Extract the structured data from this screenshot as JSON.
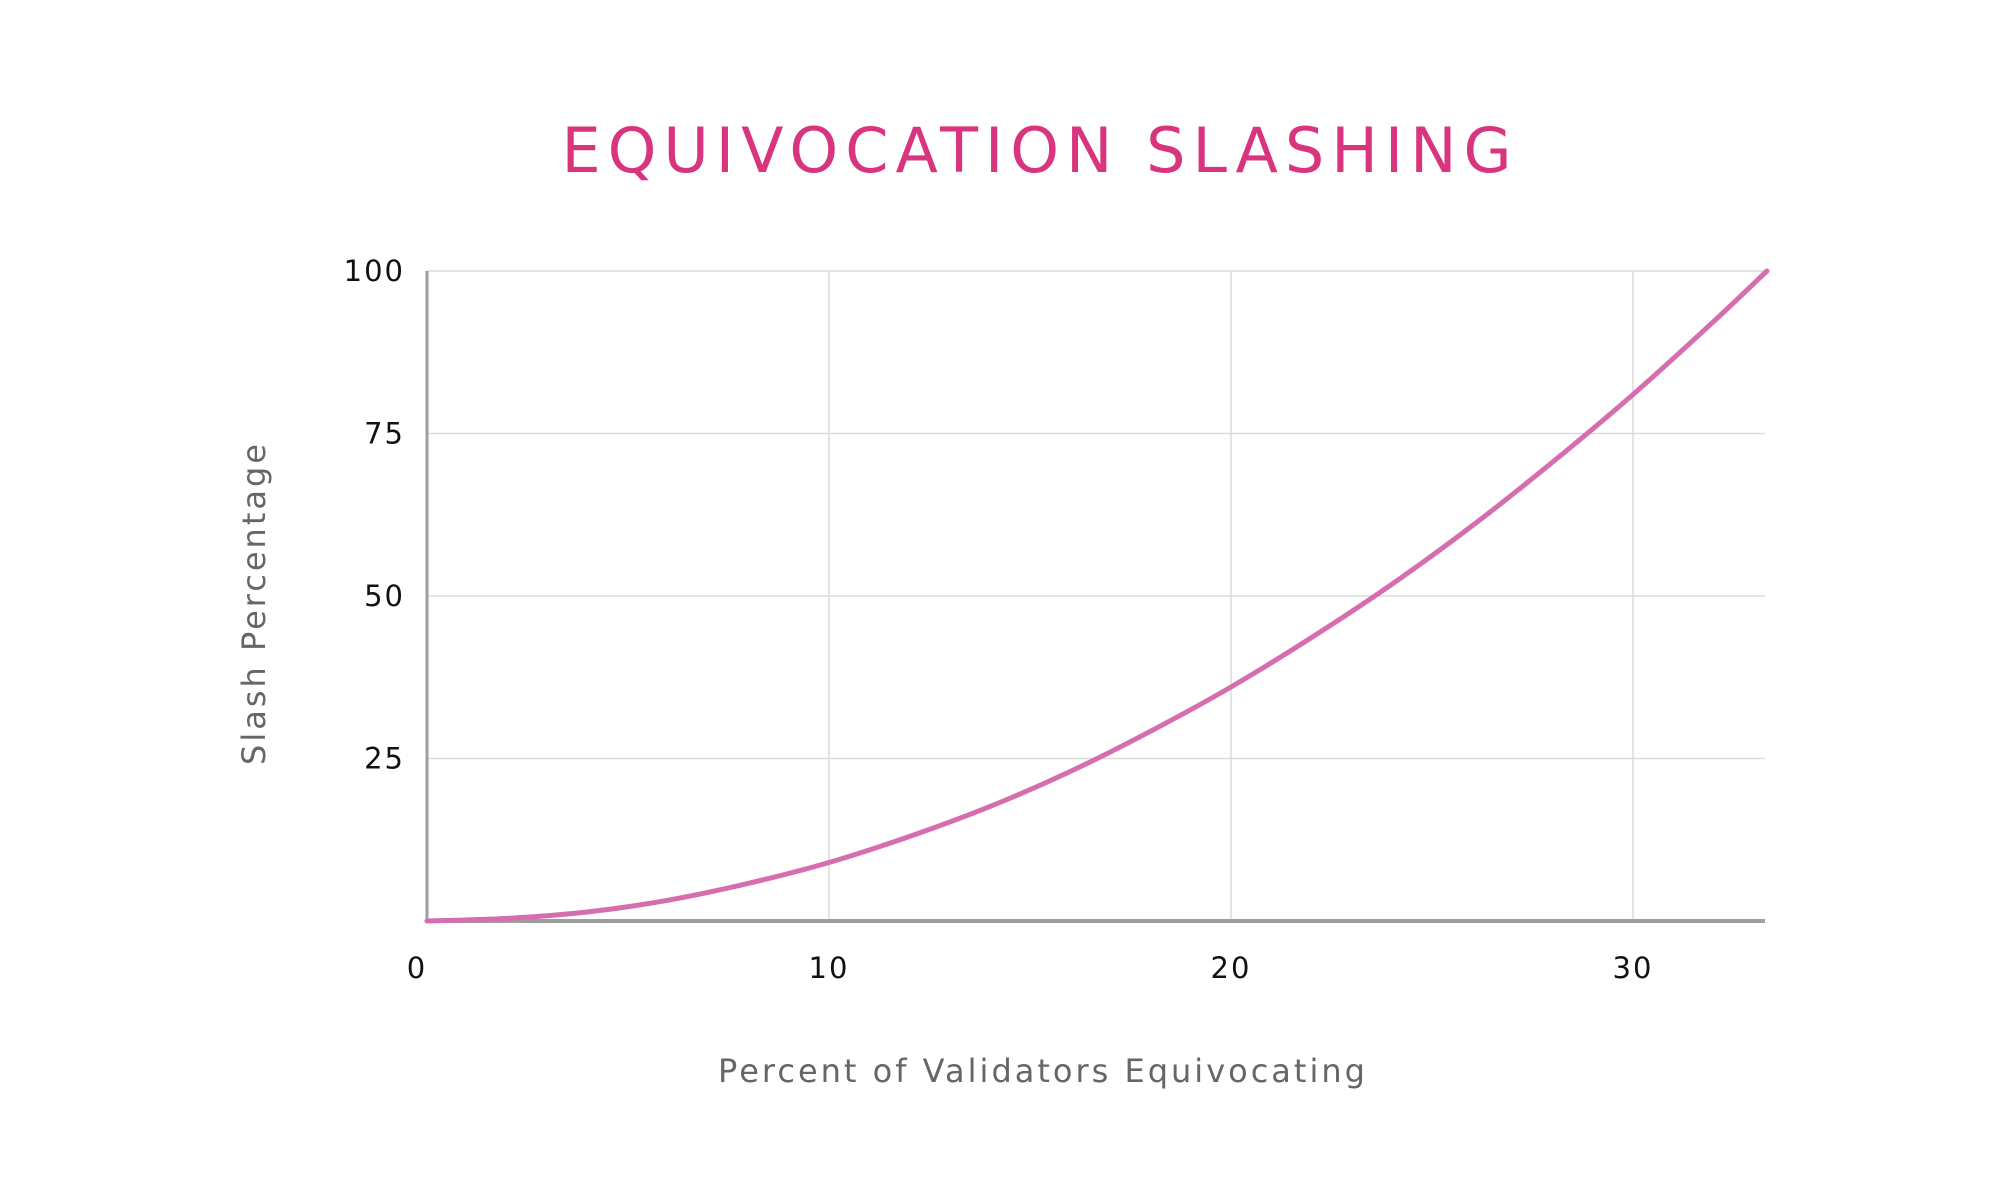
{
  "chart_data": {
    "type": "line",
    "title": "EQUIVOCATION SLASHING",
    "xlabel": "Percent of Validators Equivocating",
    "ylabel": "Slash Percentage",
    "xlim": [
      0,
      33.33
    ],
    "ylim": [
      0,
      100
    ],
    "xticks": [
      {
        "value": 0,
        "label": "0"
      },
      {
        "value": 10,
        "label": "10"
      },
      {
        "value": 20,
        "label": "20"
      },
      {
        "value": 30,
        "label": "30"
      }
    ],
    "yticks": [
      {
        "value": 25,
        "label": "25"
      },
      {
        "value": 50,
        "label": "50"
      },
      {
        "value": 75,
        "label": "75"
      },
      {
        "value": 100,
        "label": "100"
      }
    ],
    "grid": true,
    "series": [
      {
        "x": [
          0,
          2,
          4,
          6,
          8,
          10,
          12,
          14,
          16,
          18,
          20,
          22,
          24,
          26,
          28,
          30,
          32,
          33.33
        ],
        "values": [
          0,
          0.4,
          1.4,
          3.2,
          5.8,
          9,
          13,
          17.6,
          23,
          29.2,
          36,
          43.6,
          51.8,
          60.8,
          70.6,
          81,
          92.2,
          100
        ]
      }
    ],
    "colors": {
      "title": "#d9347e",
      "line": "#d66daf",
      "grid": "#dcdcdc",
      "axis": "#9e9e9e"
    }
  }
}
